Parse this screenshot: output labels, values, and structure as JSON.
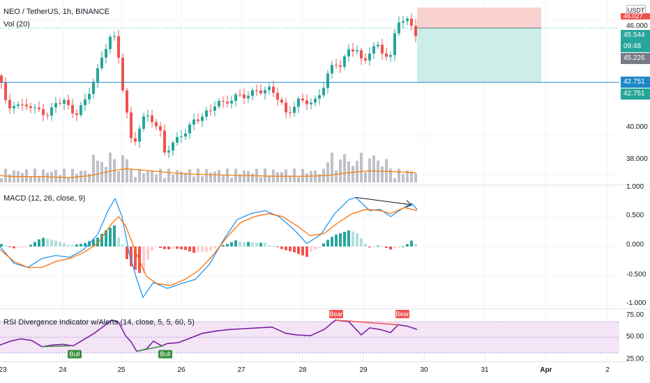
{
  "header": {
    "symbol_title": "NEO / TetherUS, 1h, BINANCE",
    "vol_label": "Vol (20)",
    "currency_button": "USDT"
  },
  "price_axis": {
    "ticks": [
      "46.000",
      "40.000",
      "38.000"
    ],
    "tags": {
      "partial": "46.027",
      "last_price": "45.544",
      "countdown": "09:48",
      "gray_level": "45.226",
      "line_level_a": "42.751",
      "line_level_b": "42.751"
    }
  },
  "macd": {
    "label": "MACD (12, 26, close, 9)",
    "ticks": [
      "1.000",
      "0.500",
      "0.000",
      "-0.500",
      "-1.000"
    ]
  },
  "rsi": {
    "label": "RSI Divergence Indicator w/Alerts (14, close, 5, 5, 60, 5)",
    "ticks": [
      "75.00",
      "50.00",
      "25.00"
    ],
    "signals": [
      "Bull",
      "Bull",
      "Bear",
      "Bear"
    ]
  },
  "time_axis": [
    "23",
    "24",
    "25",
    "26",
    "27",
    "28",
    "29",
    "30",
    "31",
    "Apr",
    "2"
  ],
  "colors": {
    "up": "#26a69a",
    "down": "#ef5350",
    "volume": "#9598a1",
    "ma": "#f57c00",
    "macd_line": "#2196f3",
    "signal_line": "#ff6d00",
    "rsi_line": "#7b1fa2",
    "rsi_band": "#f3e5f5",
    "bull": "#388e3c",
    "bear": "#ef5350",
    "hline": "#1e88c6",
    "short_stop": "#f8c9c7",
    "short_target": "#c8ebe6"
  },
  "chart_data": {
    "type": "candlestick",
    "symbol": "NEO / TetherUS",
    "interval": "1h",
    "exchange": "BINANCE",
    "ylim": [
      37.6,
      46.7
    ],
    "horizontal_line": 42.751,
    "short_position": {
      "entry": 45.544,
      "stop": 46.6,
      "target": 42.751
    },
    "price_path": [
      [
        0,
        43.1
      ],
      [
        10,
        41.3
      ],
      [
        20,
        41.7
      ],
      [
        30,
        41.4
      ],
      [
        40,
        41.7
      ],
      [
        50,
        41.3
      ],
      [
        60,
        41.3
      ],
      [
        70,
        41.0
      ],
      [
        80,
        41.7
      ],
      [
        90,
        41.9
      ],
      [
        100,
        41.3
      ],
      [
        110,
        41.2
      ],
      [
        120,
        41.6
      ],
      [
        130,
        42.5
      ],
      [
        140,
        43.3
      ],
      [
        150,
        44.5
      ],
      [
        160,
        45.2
      ],
      [
        165,
        44.9
      ],
      [
        170,
        44.1
      ],
      [
        175,
        42.7
      ],
      [
        180,
        41.6
      ],
      [
        185,
        40.3
      ],
      [
        190,
        39.4
      ],
      [
        198,
        40.3
      ],
      [
        205,
        40.8
      ],
      [
        215,
        41.1
      ],
      [
        222,
        40.6
      ],
      [
        230,
        40.1
      ],
      [
        236,
        39.2
      ],
      [
        242,
        39.4
      ],
      [
        250,
        39.6
      ],
      [
        260,
        40.1
      ],
      [
        270,
        40.3
      ],
      [
        280,
        40.9
      ],
      [
        290,
        41.0
      ],
      [
        300,
        41.2
      ],
      [
        310,
        41.8
      ],
      [
        320,
        41.6
      ],
      [
        330,
        41.9
      ],
      [
        340,
        42.0
      ],
      [
        350,
        42.1
      ],
      [
        360,
        42.1
      ],
      [
        370,
        42.4
      ],
      [
        380,
        42.3
      ],
      [
        390,
        42.4
      ],
      [
        400,
        41.9
      ],
      [
        410,
        41.1
      ],
      [
        420,
        41.5
      ],
      [
        430,
        41.8
      ],
      [
        440,
        41.8
      ],
      [
        450,
        41.6
      ],
      [
        460,
        42.3
      ],
      [
        470,
        43.1
      ],
      [
        480,
        43.8
      ],
      [
        490,
        43.6
      ],
      [
        500,
        44.4
      ],
      [
        510,
        44.6
      ],
      [
        520,
        43.6
      ],
      [
        530,
        44.4
      ],
      [
        540,
        44.6
      ],
      [
        550,
        44.3
      ],
      [
        560,
        44.0
      ],
      [
        566,
        45.2
      ],
      [
        572,
        46.0
      ],
      [
        580,
        45.9
      ],
      [
        588,
        45.8
      ],
      [
        596,
        45.3
      ]
    ],
    "volume_ma_path": [
      [
        0,
        37.95
      ],
      [
        20,
        37.9
      ],
      [
        60,
        37.9
      ],
      [
        100,
        37.85
      ],
      [
        130,
        37.95
      ],
      [
        160,
        38.2
      ],
      [
        180,
        38.3
      ],
      [
        200,
        38.25
      ],
      [
        230,
        38.15
      ],
      [
        260,
        38.05
      ],
      [
        300,
        38.0
      ],
      [
        350,
        37.95
      ],
      [
        400,
        37.92
      ],
      [
        440,
        37.92
      ],
      [
        470,
        37.96
      ],
      [
        500,
        38.1
      ],
      [
        530,
        38.2
      ],
      [
        560,
        38.16
      ],
      [
        596,
        38.1
      ]
    ],
    "macd_range": [
      -1.0,
      1.0
    ],
    "macd_path": [
      [
        0,
        0.0
      ],
      [
        20,
        -0.28
      ],
      [
        40,
        -0.35
      ],
      [
        60,
        -0.2
      ],
      [
        80,
        -0.15
      ],
      [
        100,
        -0.18
      ],
      [
        120,
        -0.05
      ],
      [
        140,
        0.2
      ],
      [
        155,
        0.6
      ],
      [
        165,
        0.8
      ],
      [
        175,
        0.5
      ],
      [
        185,
        -0.1
      ],
      [
        195,
        -0.5
      ],
      [
        205,
        -0.85
      ],
      [
        220,
        -0.6
      ],
      [
        240,
        -0.7
      ],
      [
        260,
        -0.62
      ],
      [
        280,
        -0.55
      ],
      [
        300,
        -0.3
      ],
      [
        320,
        0.1
      ],
      [
        340,
        0.45
      ],
      [
        360,
        0.55
      ],
      [
        380,
        0.6
      ],
      [
        400,
        0.5
      ],
      [
        420,
        0.3
      ],
      [
        440,
        0.05
      ],
      [
        460,
        0.2
      ],
      [
        480,
        0.55
      ],
      [
        500,
        0.78
      ],
      [
        510,
        0.82
      ],
      [
        530,
        0.6
      ],
      [
        545,
        0.62
      ],
      [
        560,
        0.5
      ],
      [
        575,
        0.62
      ],
      [
        590,
        0.72
      ],
      [
        598,
        0.62
      ]
    ],
    "signal_path": [
      [
        0,
        -0.05
      ],
      [
        20,
        -0.25
      ],
      [
        40,
        -0.35
      ],
      [
        60,
        -0.35
      ],
      [
        80,
        -0.25
      ],
      [
        100,
        -0.2
      ],
      [
        120,
        -0.1
      ],
      [
        140,
        0.05
      ],
      [
        160,
        0.38
      ],
      [
        170,
        0.5
      ],
      [
        180,
        0.35
      ],
      [
        195,
        -0.1
      ],
      [
        210,
        -0.5
      ],
      [
        225,
        -0.62
      ],
      [
        245,
        -0.65
      ],
      [
        265,
        -0.55
      ],
      [
        285,
        -0.4
      ],
      [
        305,
        -0.15
      ],
      [
        325,
        0.15
      ],
      [
        345,
        0.4
      ],
      [
        365,
        0.5
      ],
      [
        385,
        0.55
      ],
      [
        405,
        0.5
      ],
      [
        425,
        0.35
      ],
      [
        445,
        0.18
      ],
      [
        465,
        0.22
      ],
      [
        485,
        0.4
      ],
      [
        505,
        0.55
      ],
      [
        525,
        0.62
      ],
      [
        545,
        0.6
      ],
      [
        560,
        0.55
      ],
      [
        580,
        0.65
      ],
      [
        598,
        0.6
      ]
    ],
    "rsi_path": [
      [
        0,
        40
      ],
      [
        15,
        45
      ],
      [
        30,
        48
      ],
      [
        45,
        46
      ],
      [
        60,
        38
      ],
      [
        75,
        40
      ],
      [
        90,
        41
      ],
      [
        105,
        39
      ],
      [
        120,
        47
      ],
      [
        135,
        55
      ],
      [
        150,
        65
      ],
      [
        160,
        72
      ],
      [
        170,
        69
      ],
      [
        180,
        52
      ],
      [
        188,
        44
      ],
      [
        196,
        32
      ],
      [
        210,
        35
      ],
      [
        220,
        45
      ],
      [
        232,
        39
      ],
      [
        240,
        42
      ],
      [
        255,
        43
      ],
      [
        270,
        48
      ],
      [
        290,
        55
      ],
      [
        310,
        58
      ],
      [
        330,
        60
      ],
      [
        350,
        61
      ],
      [
        370,
        62
      ],
      [
        390,
        63
      ],
      [
        410,
        55
      ],
      [
        425,
        53
      ],
      [
        445,
        52
      ],
      [
        465,
        60
      ],
      [
        481,
        72
      ],
      [
        500,
        70
      ],
      [
        518,
        53
      ],
      [
        530,
        62
      ],
      [
        545,
        60
      ],
      [
        560,
        56
      ],
      [
        571,
        66
      ],
      [
        585,
        64
      ],
      [
        598,
        60
      ]
    ]
  }
}
